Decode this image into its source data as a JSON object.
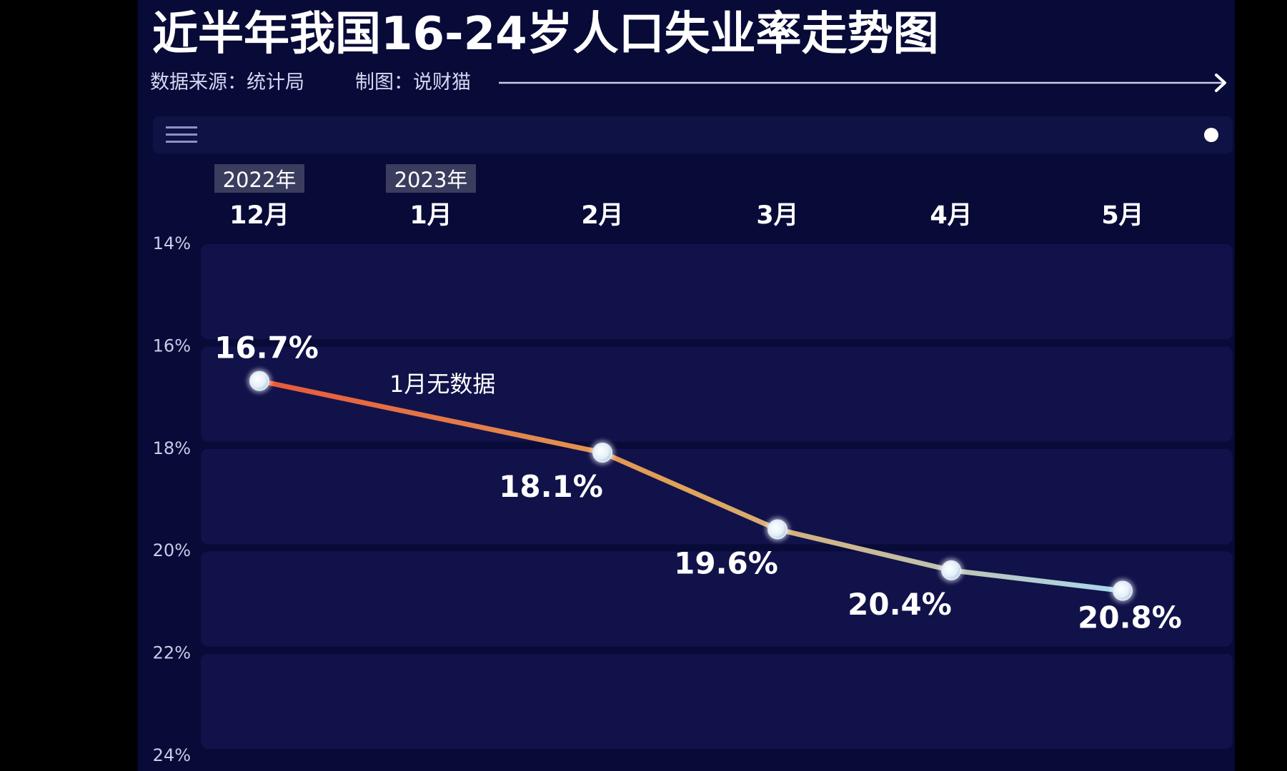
{
  "title": "近半年我国16-24岁人口失业率走势图",
  "source": {
    "data_source": "数据来源：统计局",
    "made_by": "制图：说财猫"
  },
  "colors": {
    "background": "#080a38",
    "band": "#11124a",
    "line_start": "#e8573a",
    "line_mid": "#e0a45a",
    "line_end": "#a8d8f0",
    "text": "#ffffff"
  },
  "icons": {
    "menu": "hamburger-menu-icon",
    "indicator": "white-dot"
  },
  "chart_data": {
    "type": "line",
    "title": "近半年我国16-24岁人口失业率走势图",
    "x_axis_position": "top",
    "y_inverted": true,
    "categories": [
      "12月",
      "1月",
      "2月",
      "3月",
      "4月",
      "5月"
    ],
    "year_tags": [
      "2022年",
      "2023年",
      "",
      "",
      "",
      ""
    ],
    "series": [
      {
        "values": [
          16.7,
          null,
          18.1,
          19.6,
          20.4,
          20.8
        ],
        "labels": [
          "16.7%",
          "",
          "18.1%",
          "19.6%",
          "20.4%",
          "20.8%"
        ]
      }
    ],
    "ylim": [
      14,
      24
    ],
    "yticks": [
      14,
      16,
      18,
      20,
      22,
      24
    ],
    "ytick_labels": [
      "14%",
      "16%",
      "18%",
      "20%",
      "22%",
      "24%"
    ],
    "annotation": "1月无数据",
    "grid": "horizontal bands"
  }
}
